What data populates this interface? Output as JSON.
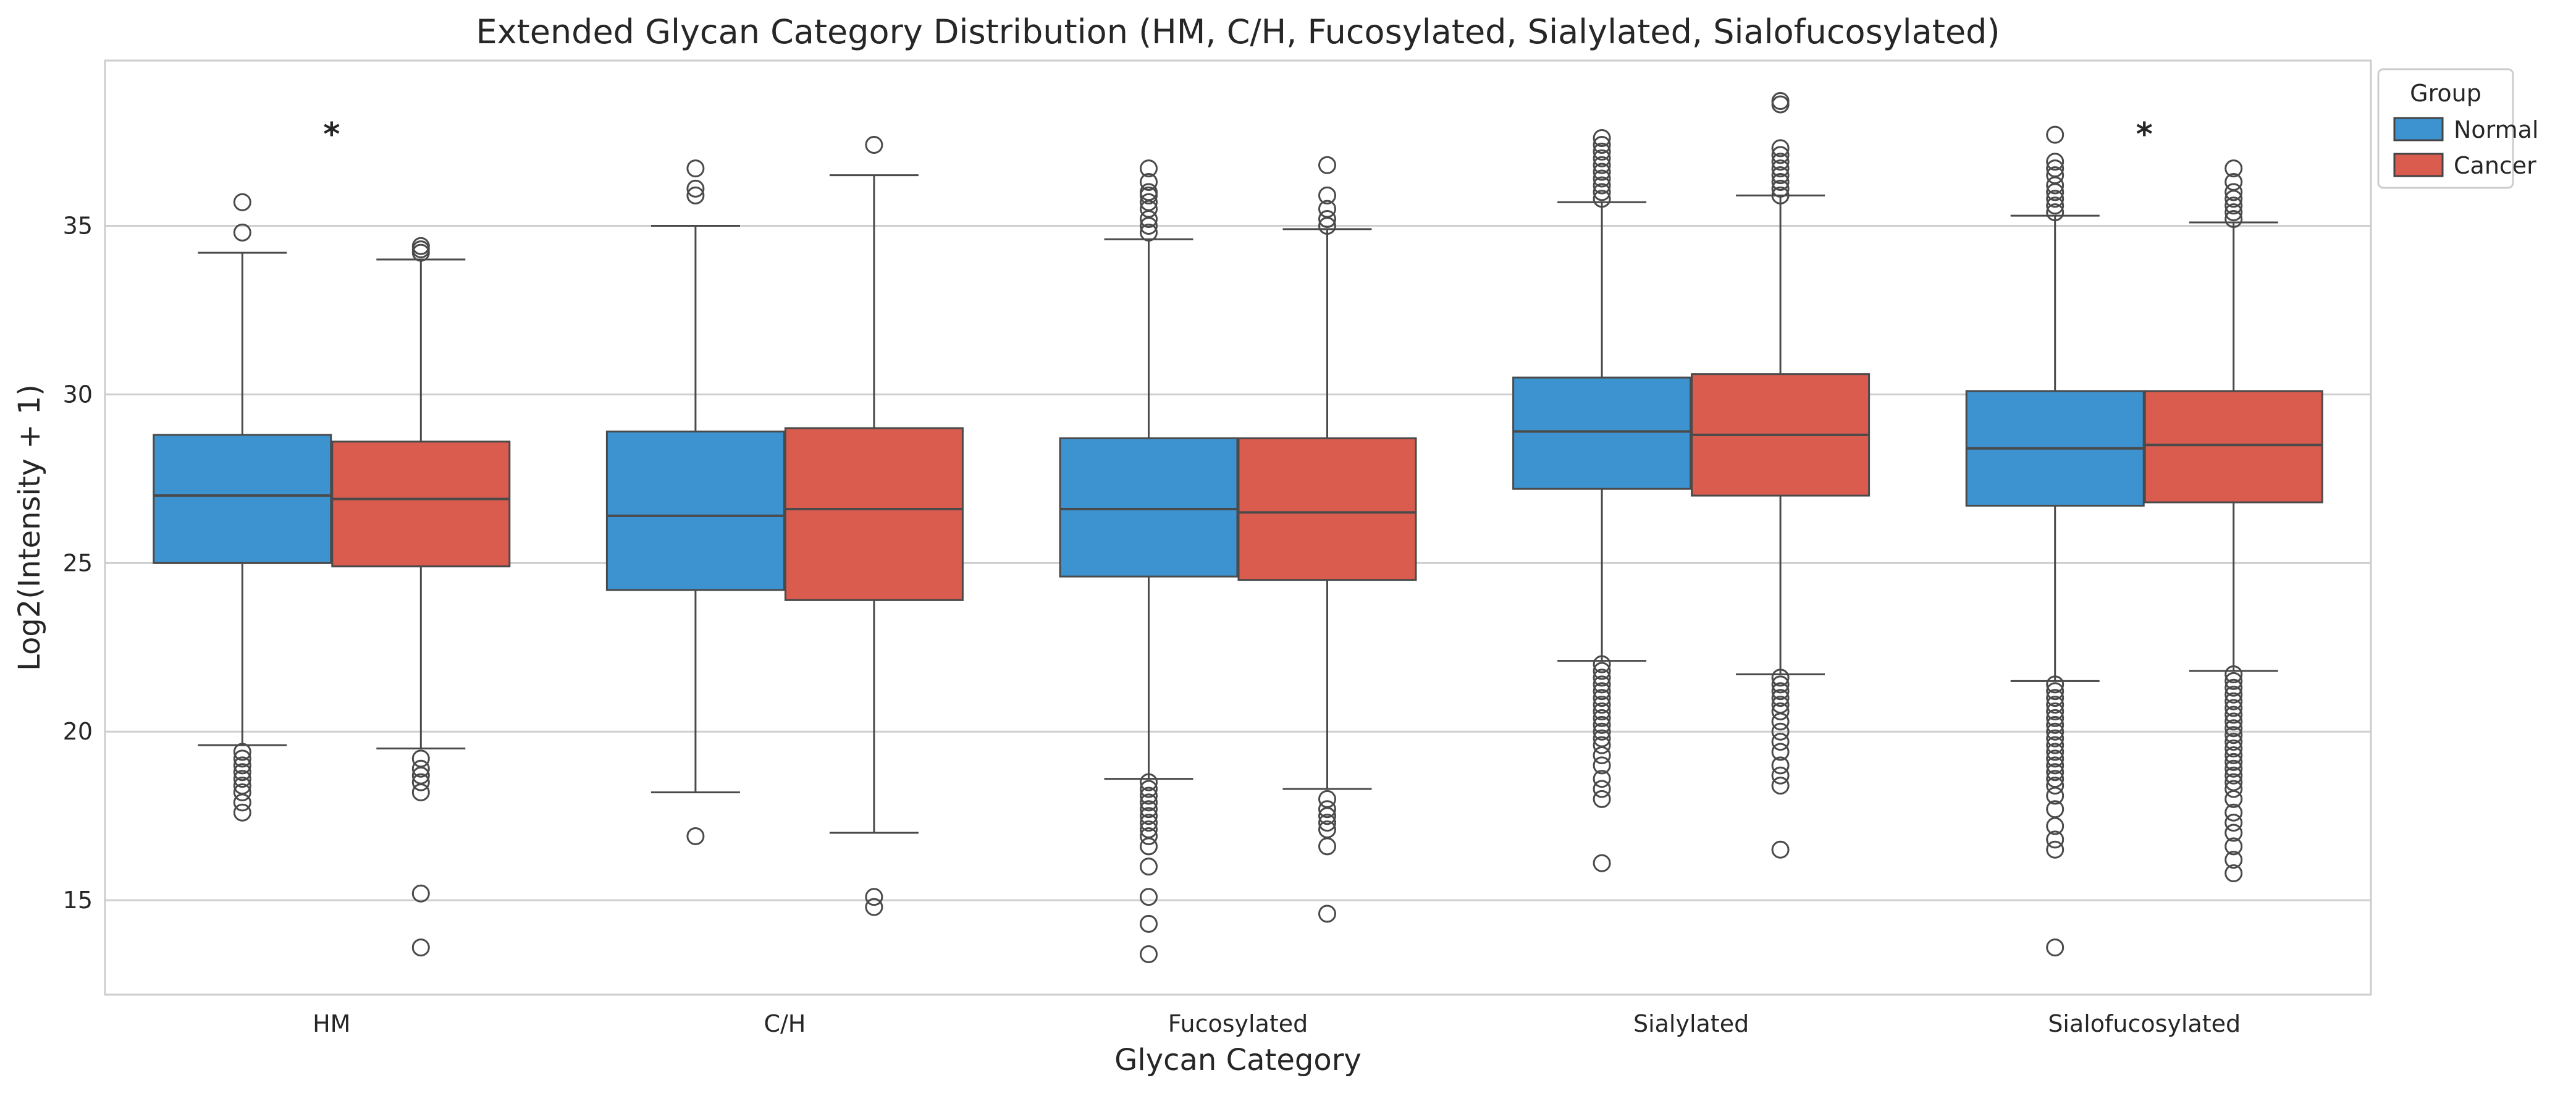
{
  "chart_data": {
    "type": "box",
    "title": "Extended Glycan Category Distribution (HM, C/H, Fucosylated, Sialylated, Sialofucosylated)",
    "xlabel": "Glycan Category",
    "ylabel": "Log2(Intensity + 1)",
    "categories": [
      "HM",
      "C/H",
      "Fucosylated",
      "Sialylated",
      "Sialofucosylated"
    ],
    "ylim": [
      12.2,
      39.9
    ],
    "yticks": [
      15,
      20,
      25,
      30,
      35
    ],
    "grid": "horizontal",
    "legend": {
      "title": "Group",
      "placement": "upper-right-outside"
    },
    "significance": [
      {
        "category": "HM",
        "text": "*"
      },
      {
        "category": "Sialofucosylated",
        "text": "*"
      }
    ],
    "series": [
      {
        "name": "Normal",
        "color": "#3d93d0",
        "boxes": [
          {
            "whisker_low": 19.6,
            "q1": 25.0,
            "median": 27.0,
            "q3": 28.8,
            "whisker_high": 34.2,
            "outliers": [
              35.7,
              34.8,
              19.4,
              19.2,
              19.0,
              18.8,
              18.6,
              18.4,
              18.2,
              17.9,
              17.6
            ]
          },
          {
            "whisker_low": 18.2,
            "q1": 24.2,
            "median": 26.4,
            "q3": 28.9,
            "whisker_high": 35.0,
            "outliers": [
              36.7,
              36.1,
              35.9,
              16.9
            ]
          },
          {
            "whisker_low": 18.6,
            "q1": 24.6,
            "median": 26.6,
            "q3": 28.7,
            "whisker_high": 34.6,
            "outliers": [
              36.7,
              36.3,
              36.0,
              35.9,
              35.7,
              35.5,
              35.2,
              35.0,
              34.8,
              18.5,
              18.3,
              18.1,
              17.9,
              17.7,
              17.5,
              17.3,
              17.1,
              16.9,
              16.6,
              16.0,
              15.1,
              14.3,
              13.4
            ]
          },
          {
            "whisker_low": 22.1,
            "q1": 27.2,
            "median": 28.9,
            "q3": 30.5,
            "whisker_high": 35.7,
            "outliers": [
              37.6,
              37.4,
              37.2,
              37.0,
              36.8,
              36.6,
              36.4,
              36.2,
              36.0,
              35.8,
              22.0,
              21.8,
              21.6,
              21.4,
              21.2,
              21.0,
              20.8,
              20.6,
              20.4,
              20.2,
              20.0,
              19.8,
              19.6,
              19.3,
              19.0,
              18.6,
              18.3,
              18.0,
              16.1
            ]
          },
          {
            "whisker_low": 21.5,
            "q1": 26.7,
            "median": 28.4,
            "q3": 30.1,
            "whisker_high": 35.3,
            "outliers": [
              37.7,
              36.9,
              36.7,
              36.5,
              36.2,
              36.0,
              35.8,
              35.6,
              35.4,
              21.4,
              21.2,
              21.0,
              20.8,
              20.6,
              20.4,
              20.2,
              20.0,
              19.8,
              19.6,
              19.4,
              19.2,
              19.0,
              18.8,
              18.6,
              18.4,
              18.1,
              17.7,
              17.2,
              16.8,
              16.5,
              13.6
            ]
          }
        ]
      },
      {
        "name": "Cancer",
        "color": "#d95c4f",
        "boxes": [
          {
            "whisker_low": 19.5,
            "q1": 24.9,
            "median": 26.9,
            "q3": 28.6,
            "whisker_high": 34.0,
            "outliers": [
              34.4,
              34.3,
              34.2,
              19.2,
              18.9,
              18.7,
              18.5,
              18.2,
              15.2,
              13.6
            ]
          },
          {
            "whisker_low": 17.0,
            "q1": 23.9,
            "median": 26.6,
            "q3": 29.0,
            "whisker_high": 36.5,
            "outliers": [
              37.4,
              15.1,
              14.8
            ]
          },
          {
            "whisker_low": 18.3,
            "q1": 24.5,
            "median": 26.5,
            "q3": 28.7,
            "whisker_high": 34.9,
            "outliers": [
              36.8,
              35.9,
              35.5,
              35.2,
              35.0,
              18.0,
              17.7,
              17.5,
              17.3,
              17.1,
              16.6,
              14.6
            ]
          },
          {
            "whisker_low": 21.7,
            "q1": 27.0,
            "median": 28.8,
            "q3": 30.6,
            "whisker_high": 35.9,
            "outliers": [
              38.7,
              38.6,
              37.3,
              37.1,
              36.9,
              36.7,
              36.5,
              36.3,
              36.1,
              35.9,
              21.6,
              21.4,
              21.2,
              21.0,
              20.8,
              20.6,
              20.3,
              20.0,
              19.7,
              19.4,
              19.0,
              18.7,
              18.4,
              16.5
            ]
          },
          {
            "whisker_low": 21.8,
            "q1": 26.8,
            "median": 28.5,
            "q3": 30.1,
            "whisker_high": 35.1,
            "outliers": [
              36.7,
              36.3,
              36.0,
              35.8,
              35.6,
              35.4,
              35.2,
              21.7,
              21.5,
              21.3,
              21.1,
              20.9,
              20.7,
              20.5,
              20.3,
              20.1,
              19.9,
              19.7,
              19.5,
              19.3,
              19.1,
              18.9,
              18.7,
              18.5,
              18.3,
              18.0,
              17.6,
              17.3,
              17.0,
              16.6,
              16.2,
              15.8
            ]
          }
        ]
      }
    ]
  }
}
